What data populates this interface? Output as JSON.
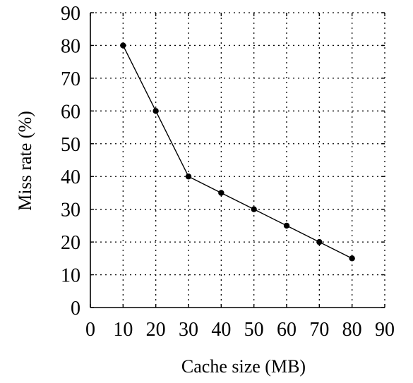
{
  "chart_data": {
    "type": "line",
    "title": "",
    "xlabel": "Cache size (MB)",
    "ylabel": "Miss rate (%)",
    "xlim": [
      0,
      90
    ],
    "ylim": [
      0,
      90
    ],
    "xticks": [
      0,
      10,
      20,
      30,
      40,
      50,
      60,
      70,
      80,
      90
    ],
    "yticks": [
      0,
      10,
      20,
      30,
      40,
      50,
      60,
      70,
      80,
      90
    ],
    "grid": true,
    "legend": "none",
    "series": [
      {
        "x": [
          10,
          20,
          30,
          40,
          50,
          60,
          70,
          80
        ],
        "y": [
          80,
          60,
          40,
          35,
          30,
          25,
          20,
          15
        ],
        "color": "#000000",
        "marker": "filled-circle"
      }
    ]
  }
}
